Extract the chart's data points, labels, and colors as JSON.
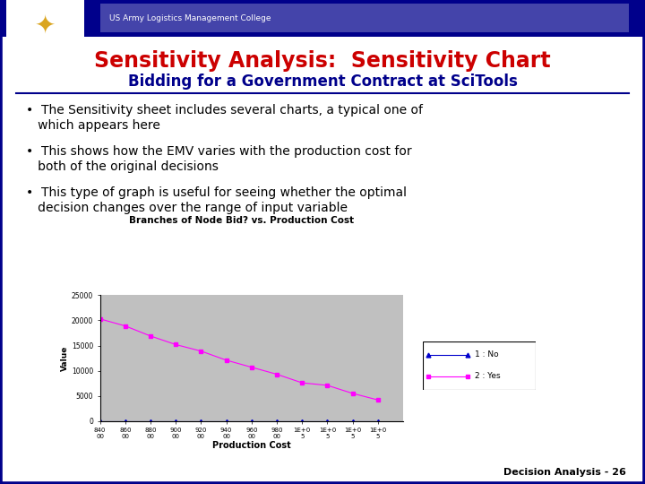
{
  "title_main": "Sensitivity Analysis:  Sensitivity Chart",
  "title_sub": "Bidding for a Government Contract at SciTools",
  "header_text": "US Army Logistics Management College",
  "bullets": [
    "The Sensitivity sheet includes several charts, a typical one of\nwhich appears here",
    "This shows how the EMV varies with the production cost for\nboth of the original decisions",
    "This type of graph is useful for seeing whether the optimal\ndecision changes over the range of input variable"
  ],
  "chart_title": "Branches of Node Bid? vs. Production Cost",
  "xlabel": "Production Cost",
  "ylabel": "Value",
  "x_values": [
    840000,
    860000,
    880000,
    900000,
    920000,
    940000,
    960000,
    980000,
    1000000,
    1020000,
    1040000,
    1060000
  ],
  "series1_values": [
    0,
    0,
    0,
    0,
    0,
    0,
    0,
    0,
    0,
    0,
    0,
    0
  ],
  "series2_values": [
    20300,
    18900,
    16900,
    15200,
    13900,
    12100,
    10700,
    9300,
    7600,
    7100,
    5500,
    4200
  ],
  "series1_color": "#0000cc",
  "series2_color": "#ff00ff",
  "series1_label": "1 : No",
  "series2_label": "2 : Yes",
  "ylim": [
    0,
    25000
  ],
  "bg_color": "#c0c0c0",
  "slide_bg": "#ffffff",
  "border_color": "#00008B",
  "title_color": "#cc0000",
  "subtitle_color": "#00008B",
  "bullet_color": "#000000",
  "footer_text": "Decision Analysis - 26",
  "x_tick_labels": [
    "840\n00",
    "860\n00",
    "880\n00",
    "900\n00",
    "920\n00",
    "940\n00",
    "960\n00",
    "980\n00",
    "1E+0\n5",
    "1E+0\n5",
    "1E+0\n5",
    "1E+0\n5"
  ]
}
